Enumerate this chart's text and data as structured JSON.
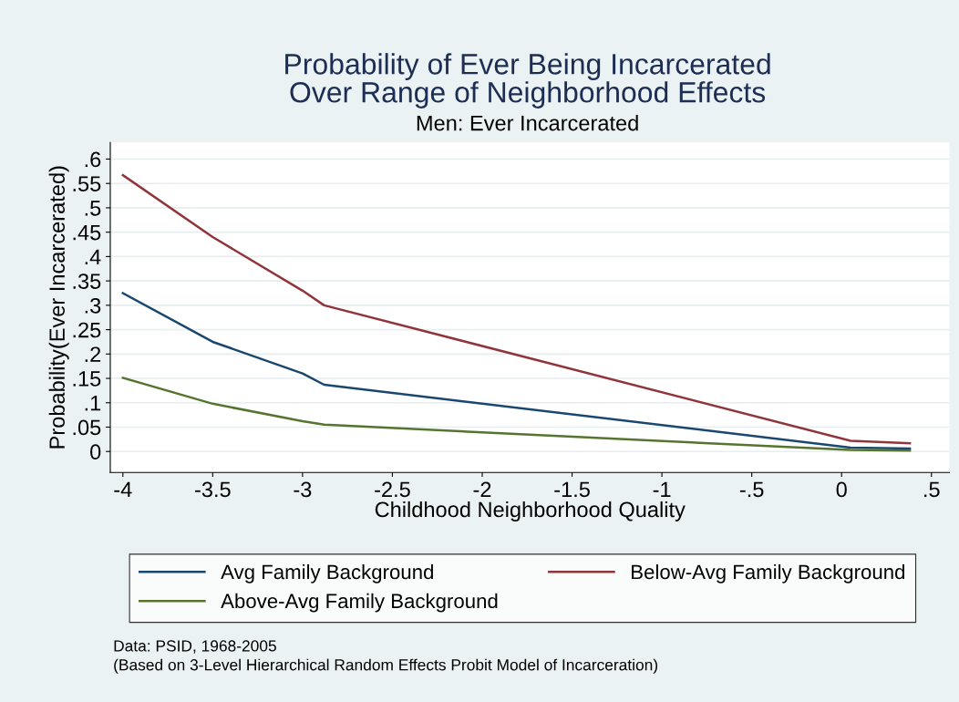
{
  "chart_data": {
    "type": "line",
    "title": "Probability of Ever Being Incarcerated\nOver Range of Neighborhood Effects",
    "subtitle": "Men: Ever Incarcerated",
    "xlabel": "Childhood Neighborhood Quality",
    "ylabel": "Probability(Ever Incarcerated)",
    "series": [
      {
        "name": "Avg Family Background",
        "color": "#1a476f",
        "x": [
          -4,
          -3.5,
          -3,
          -2.88,
          0.05,
          0.38
        ],
        "values": [
          0.325,
          0.225,
          0.16,
          0.137,
          0.008,
          0.006
        ]
      },
      {
        "name": "Below-Avg Family Background",
        "color": "#90353b",
        "x": [
          -4,
          -3.5,
          -3,
          -2.88,
          0.05,
          0.38
        ],
        "values": [
          0.567,
          0.44,
          0.33,
          0.3,
          0.022,
          0.017
        ]
      },
      {
        "name": "Above-Avg Family Background",
        "color": "#55752f",
        "x": [
          -4,
          -3.5,
          -3,
          -2.88,
          0.05,
          0.38
        ],
        "values": [
          0.151,
          0.098,
          0.062,
          0.055,
          0.003,
          0.002
        ]
      }
    ],
    "xlim": [
      -4.07,
      0.6
    ],
    "ylim": [
      -0.043,
      0.634
    ],
    "xticks": [
      -4,
      {
        "value": -3.5,
        "label": "-3.5"
      },
      -3,
      {
        "value": -2.5,
        "label": "-2.5"
      },
      -2,
      {
        "value": -1.5,
        "label": "-1.5"
      },
      -1,
      {
        "value": -0.5,
        "label": "-.5"
      },
      0,
      {
        "value": 0.5,
        "label": ".5"
      }
    ],
    "yticks": [
      0,
      {
        "value": 0.05,
        "label": ".05"
      },
      {
        "value": 0.1,
        "label": ".1"
      },
      {
        "value": 0.15,
        "label": ".15"
      },
      {
        "value": 0.2,
        "label": ".2"
      },
      {
        "value": 0.25,
        "label": ".25"
      },
      {
        "value": 0.3,
        "label": ".3"
      },
      {
        "value": 0.35,
        "label": ".35"
      },
      {
        "value": 0.4,
        "label": ".4"
      },
      {
        "value": 0.45,
        "label": ".45"
      },
      {
        "value": 0.5,
        "label": ".5"
      },
      {
        "value": 0.55,
        "label": ".55"
      },
      {
        "value": 0.6,
        "label": ".6"
      }
    ],
    "grid": "y",
    "legend": "bottom",
    "marker": "none",
    "line_style": "solid",
    "annotations": [
      "Data: PSID, 1968-2005",
      "(Based on 3-Level Hierarchical Random Effects Probit Model of Incarceration)"
    ]
  }
}
